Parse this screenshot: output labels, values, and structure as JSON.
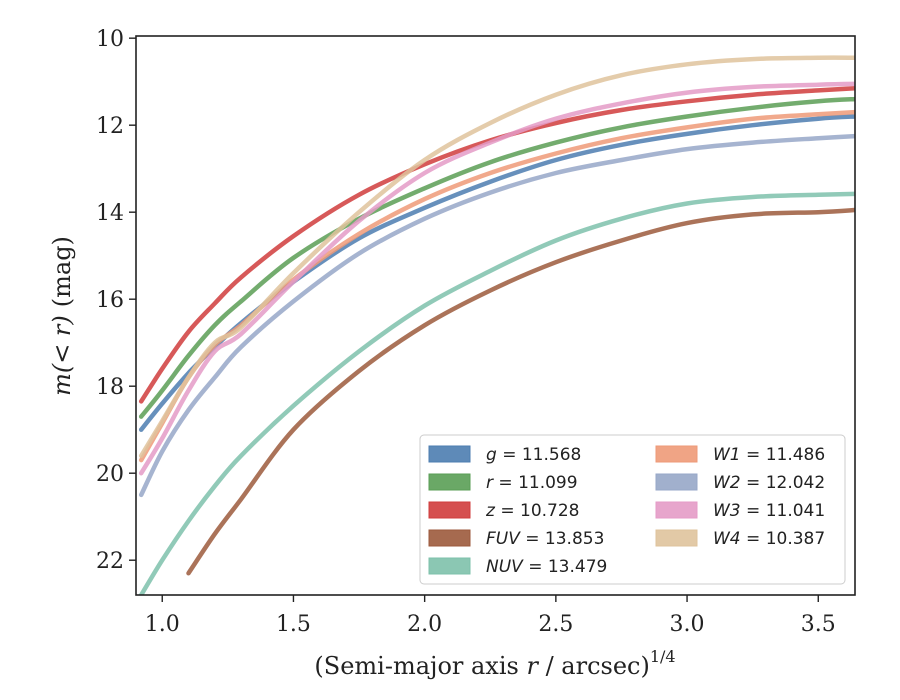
{
  "chart_data": {
    "type": "line",
    "xlabel": "(Semi-major axis r / arcsec)",
    "xlabel_var": "r",
    "xlabel_pre": "(Semi-major axis ",
    "xlabel_post": " / arcsec)",
    "xlabel_exp": "1/4",
    "ylabel_var_open": "m(< r)",
    "ylabel_unit": "(mag)",
    "xlim": [
      0.9,
      3.64
    ],
    "ylim": [
      22.8,
      9.95
    ],
    "y_inverted": true,
    "xticks": [
      1.0,
      1.5,
      2.0,
      2.5,
      3.0,
      3.5
    ],
    "xtick_labels": [
      "1.0",
      "1.5",
      "2.0",
      "2.5",
      "3.0",
      "3.5"
    ],
    "yticks": [
      10,
      12,
      14,
      16,
      18,
      20,
      22
    ],
    "ytick_labels": [
      "10",
      "12",
      "14",
      "16",
      "18",
      "20",
      "22"
    ],
    "grid": false,
    "legend_position": "lower-right",
    "series": [
      {
        "name": "g",
        "value": "11.568",
        "color": "#4c7db0",
        "x": [
          0.92,
          1.0,
          1.1,
          1.2,
          1.3,
          1.5,
          1.75,
          2.0,
          2.25,
          2.5,
          2.75,
          3.0,
          3.25,
          3.5,
          3.64
        ],
        "y": [
          19.0,
          18.4,
          17.7,
          17.1,
          16.55,
          15.6,
          14.6,
          13.9,
          13.3,
          12.8,
          12.45,
          12.2,
          12.0,
          11.85,
          11.8
        ]
      },
      {
        "name": "r",
        "value": "11.099",
        "color": "#5a9e55",
        "x": [
          0.92,
          1.0,
          1.1,
          1.2,
          1.3,
          1.5,
          1.75,
          2.0,
          2.25,
          2.5,
          2.75,
          3.0,
          3.25,
          3.5,
          3.64
        ],
        "y": [
          18.7,
          18.1,
          17.3,
          16.6,
          16.05,
          15.05,
          14.15,
          13.45,
          12.85,
          12.4,
          12.05,
          11.8,
          11.6,
          11.45,
          11.4
        ]
      },
      {
        "name": "z",
        "value": "10.728",
        "color": "#d03c3c",
        "x": [
          0.92,
          1.0,
          1.1,
          1.2,
          1.3,
          1.5,
          1.75,
          2.0,
          2.25,
          2.5,
          2.75,
          3.0,
          3.25,
          3.5,
          3.64
        ],
        "y": [
          18.35,
          17.6,
          16.75,
          16.1,
          15.5,
          14.55,
          13.6,
          12.9,
          12.35,
          11.95,
          11.65,
          11.45,
          11.3,
          11.2,
          11.15
        ]
      },
      {
        "name": "FUV",
        "value": "13.853",
        "color": "#9c5a3c",
        "x": [
          1.1,
          1.2,
          1.3,
          1.5,
          1.75,
          2.0,
          2.25,
          2.5,
          2.75,
          3.0,
          3.25,
          3.5,
          3.64
        ],
        "y": [
          22.3,
          21.4,
          20.6,
          19.0,
          17.65,
          16.6,
          15.8,
          15.15,
          14.65,
          14.25,
          14.05,
          14.0,
          13.95
        ]
      },
      {
        "name": "NUV",
        "value": "13.479",
        "color": "#7ec1ab",
        "x": [
          0.92,
          1.0,
          1.1,
          1.2,
          1.3,
          1.5,
          1.75,
          2.0,
          2.25,
          2.5,
          2.75,
          3.0,
          3.25,
          3.5,
          3.64
        ],
        "y": [
          22.8,
          22.0,
          21.1,
          20.3,
          19.6,
          18.45,
          17.2,
          16.15,
          15.35,
          14.65,
          14.15,
          13.8,
          13.65,
          13.6,
          13.58
        ]
      },
      {
        "name": "W1",
        "value": "11.486",
        "color": "#ee9a78",
        "x": [
          0.92,
          1.0,
          1.1,
          1.2,
          1.3,
          1.5,
          1.75,
          2.0,
          2.25,
          2.5,
          2.75,
          3.0,
          3.25,
          3.5,
          3.64
        ],
        "y": [
          19.7,
          18.85,
          17.8,
          17.05,
          16.6,
          15.55,
          14.5,
          13.7,
          13.1,
          12.65,
          12.3,
          12.05,
          11.85,
          11.75,
          11.7
        ]
      },
      {
        "name": "W2",
        "value": "12.042",
        "color": "#97a7c8",
        "x": [
          0.92,
          1.0,
          1.1,
          1.2,
          1.3,
          1.5,
          1.75,
          2.0,
          2.25,
          2.5,
          2.75,
          3.0,
          3.25,
          3.5,
          3.64
        ],
        "y": [
          20.5,
          19.5,
          18.55,
          17.8,
          17.1,
          16.05,
          14.95,
          14.15,
          13.55,
          13.1,
          12.8,
          12.55,
          12.4,
          12.3,
          12.25
        ]
      },
      {
        "name": "W3",
        "value": "11.041",
        "color": "#e49bc7",
        "x": [
          0.92,
          1.0,
          1.1,
          1.2,
          1.3,
          1.5,
          1.75,
          2.0,
          2.25,
          2.5,
          2.75,
          3.0,
          3.25,
          3.5,
          3.64
        ],
        "y": [
          20.0,
          19.2,
          18.1,
          17.2,
          16.8,
          15.6,
          14.2,
          13.1,
          12.4,
          11.85,
          11.5,
          11.25,
          11.12,
          11.07,
          11.05
        ]
      },
      {
        "name": "W4",
        "value": "10.387",
        "color": "#dfc39c",
        "x": [
          0.92,
          1.0,
          1.1,
          1.2,
          1.3,
          1.5,
          1.75,
          2.0,
          2.25,
          2.5,
          2.75,
          3.0,
          3.25,
          3.5,
          3.64
        ],
        "y": [
          19.6,
          18.8,
          17.8,
          17.0,
          16.65,
          15.4,
          14.0,
          12.8,
          11.95,
          11.3,
          10.85,
          10.6,
          10.48,
          10.45,
          10.45
        ]
      }
    ]
  }
}
